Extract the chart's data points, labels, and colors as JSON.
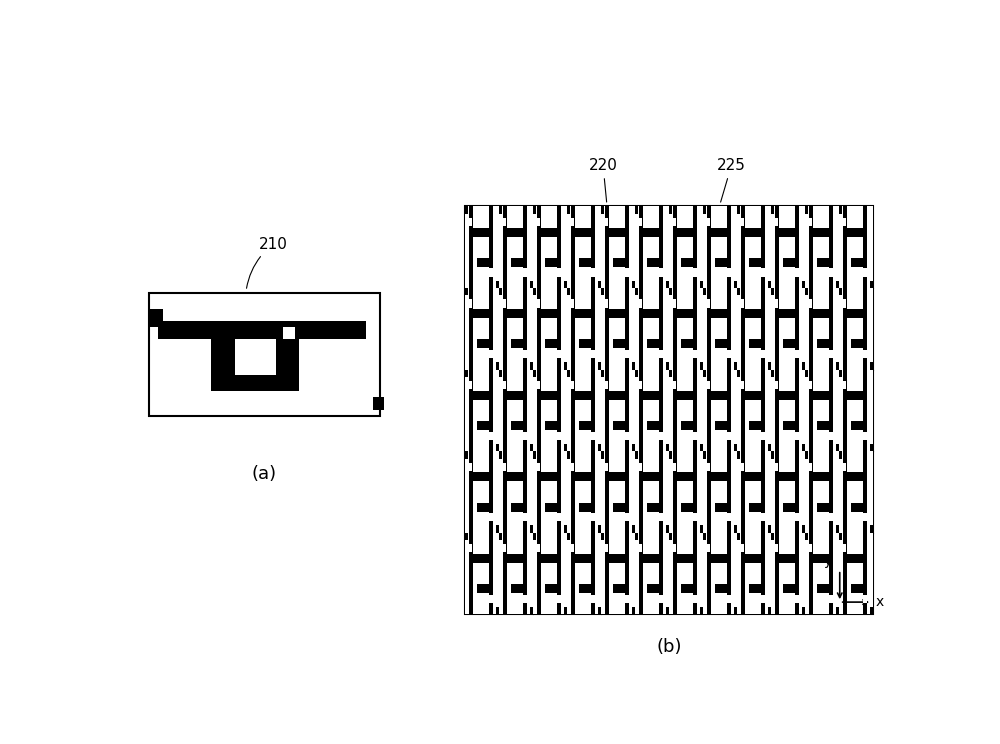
{
  "bg_color": "#ffffff",
  "line_color": "#000000",
  "fig_width": 10.0,
  "fig_height": 7.44,
  "label_210": "210",
  "label_220": "220",
  "label_225": "225",
  "label_a": "(a)",
  "label_b": "(b)",
  "grid_rows": 5,
  "grid_cols": 6,
  "sub_cols": 2
}
